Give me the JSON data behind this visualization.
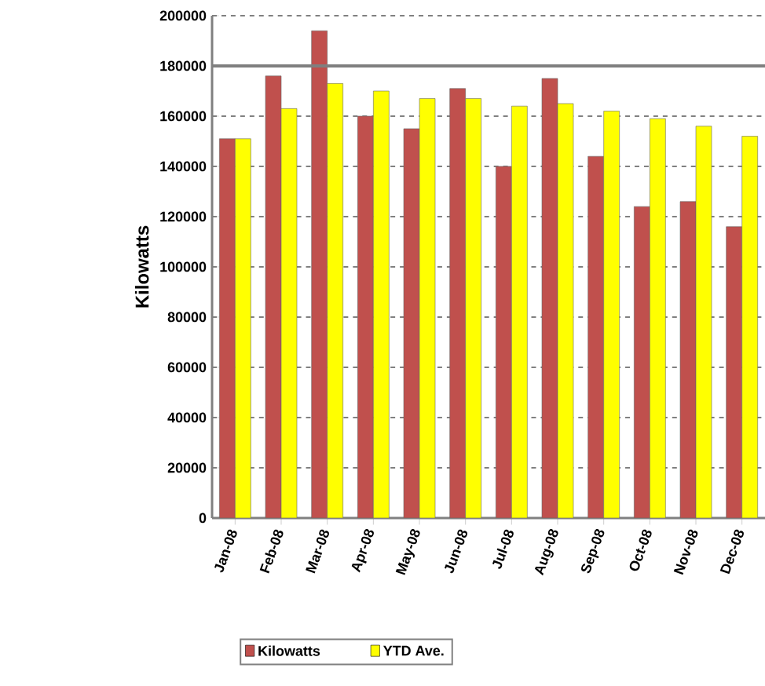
{
  "chart_data": {
    "type": "bar",
    "ylabel": "Kilowatts",
    "categories": [
      "Jan-08",
      "Feb-08",
      "Mar-08",
      "Apr-08",
      "May-08",
      "Jun-08",
      "Jul-08",
      "Aug-08",
      "Sep-08",
      "Oct-08",
      "Nov-08",
      "Dec-08"
    ],
    "series": [
      {
        "name": "Kilowatts",
        "color": "#c0504d",
        "values": [
          151000,
          176000,
          194000,
          160000,
          155000,
          171000,
          140000,
          175000,
          144000,
          124000,
          126000,
          116000
        ]
      },
      {
        "name": "YTD Ave.",
        "color": "#ffff00",
        "values": [
          151000,
          163000,
          173000,
          170000,
          167000,
          167000,
          164000,
          165000,
          162000,
          159000,
          156000,
          152000
        ]
      }
    ],
    "ylim": [
      0,
      200000
    ],
    "yticks": [
      0,
      20000,
      40000,
      60000,
      80000,
      100000,
      120000,
      140000,
      160000,
      180000,
      200000
    ],
    "grid": "y",
    "legend": "bottom",
    "ref_lines": [
      {
        "axis": "y",
        "value": 180000,
        "color": "#7f7f7f"
      }
    ]
  }
}
